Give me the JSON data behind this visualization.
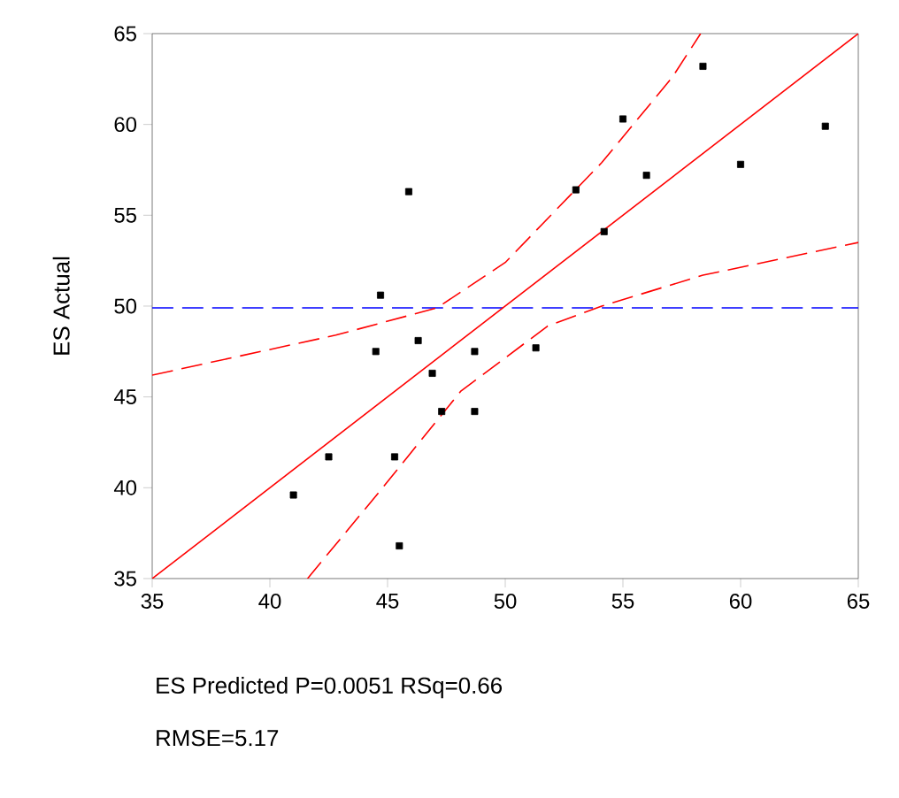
{
  "chart_data": {
    "type": "scatter",
    "xlabel": "ES Predicted P=0.0051 RSq=0.66",
    "ylabel": "ES Actual",
    "annotations": [
      "RMSE=5.17"
    ],
    "xlim": [
      35,
      65
    ],
    "ylim": [
      35,
      65
    ],
    "xticks": [
      35,
      40,
      45,
      50,
      55,
      60,
      65
    ],
    "yticks": [
      35,
      40,
      45,
      50,
      55,
      60,
      65
    ],
    "grid": false,
    "ref_lines": [
      {
        "axis": "y",
        "value": 49.9,
        "color": "#0000ff",
        "line_style": "dashed"
      }
    ],
    "series": [
      {
        "color": "#000000",
        "marker": "square",
        "x": [
          41,
          42.5,
          44.5,
          44.7,
          45.3,
          45.5,
          45.9,
          46.3,
          46.9,
          47.3,
          48.7,
          48.7,
          51.3,
          53,
          54.2,
          55,
          56,
          58.4,
          60,
          63.6
        ],
        "values": [
          39.6,
          41.7,
          47.5,
          50.6,
          41.7,
          36.8,
          56.3,
          48.1,
          46.3,
          44.2,
          47.5,
          44.2,
          47.7,
          56.4,
          54.1,
          60.3,
          57.2,
          63.2,
          57.8,
          59.9
        ]
      },
      {
        "type": "line",
        "color": "#ff0000",
        "line_style": "solid",
        "marker": "none",
        "x": [
          35,
          65
        ],
        "values": [
          35,
          65
        ]
      },
      {
        "type": "line",
        "color": "#ff0000",
        "line_style": "dashed",
        "marker": "none",
        "x": [
          35,
          42.8,
          47.1,
          50.0,
          54.1,
          57.1,
          58.3
        ],
        "values": [
          46.2,
          48.4,
          49.9,
          52.4,
          57.9,
          62.6,
          65
        ]
      },
      {
        "type": "line",
        "color": "#ff0000",
        "line_style": "dashed",
        "marker": "none",
        "x": [
          41.6,
          44.6,
          48.1,
          51.8,
          54.1,
          58.4,
          65
        ],
        "values": [
          35,
          39.7,
          45.3,
          48.9,
          50.0,
          51.7,
          53.5
        ]
      }
    ]
  }
}
